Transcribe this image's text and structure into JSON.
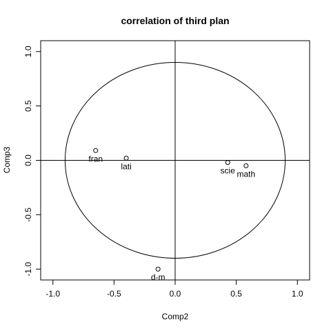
{
  "chart_data": {
    "type": "scatter",
    "title": "correlation of third plan",
    "xlabel": "Comp2",
    "ylabel": "Comp3",
    "xlim": [
      -1.1,
      1.1
    ],
    "ylim": [
      -1.1,
      1.1
    ],
    "x_ticks": [
      -1.0,
      -0.5,
      0.0,
      0.5,
      1.0
    ],
    "y_ticks": [
      -1.0,
      -0.5,
      0.0,
      0.5,
      1.0
    ],
    "x_tick_labels": [
      "-1.0",
      "-0.5",
      "0.0",
      "0.5",
      "1.0"
    ],
    "y_tick_labels": [
      "-1.0",
      "-0.5",
      "0.0",
      "0.5",
      "1.0"
    ],
    "circle_radius": 0.9,
    "reference_lines": [
      {
        "orientation": "horizontal",
        "value": 0
      },
      {
        "orientation": "vertical",
        "value": 0
      }
    ],
    "points": [
      {
        "label": "fran",
        "x": -0.65,
        "y": 0.09
      },
      {
        "label": "lati",
        "x": -0.4,
        "y": 0.02
      },
      {
        "label": "scie",
        "x": 0.43,
        "y": -0.02
      },
      {
        "label": "math",
        "x": 0.58,
        "y": -0.05
      },
      {
        "label": "d-m",
        "x": -0.14,
        "y": -1.0
      }
    ]
  }
}
